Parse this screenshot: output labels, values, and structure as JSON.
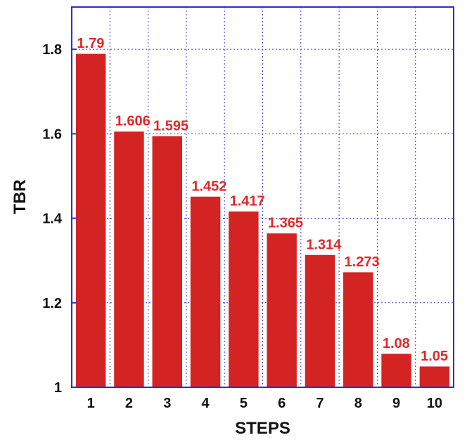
{
  "chart_data": {
    "type": "bar",
    "title": "",
    "xlabel": "STEPS",
    "ylabel": "TBR",
    "categories": [
      "1",
      "2",
      "3",
      "4",
      "5",
      "6",
      "7",
      "8",
      "9",
      "10"
    ],
    "values": [
      1.79,
      1.606,
      1.595,
      1.452,
      1.417,
      1.365,
      1.314,
      1.273,
      1.08,
      1.05
    ],
    "data_labels": [
      "1.79",
      "1.606",
      "1.595",
      "1.452",
      "1.417",
      "1.365",
      "1.314",
      "1.273",
      "1.08",
      "1.05"
    ],
    "ylim": [
      1,
      1.9
    ],
    "yticks": [
      1,
      1.2,
      1.4,
      1.6,
      1.8
    ],
    "ytick_labels": [
      "1",
      "1.2",
      "1.4",
      "1.6",
      "1.8"
    ],
    "grid": true,
    "legend": "none",
    "colors": {
      "bar": "#d42323",
      "bar_edge": "#ffffff",
      "label": "#e0282a",
      "grid": "#3a3ad6",
      "frame": "#3030c8"
    }
  }
}
